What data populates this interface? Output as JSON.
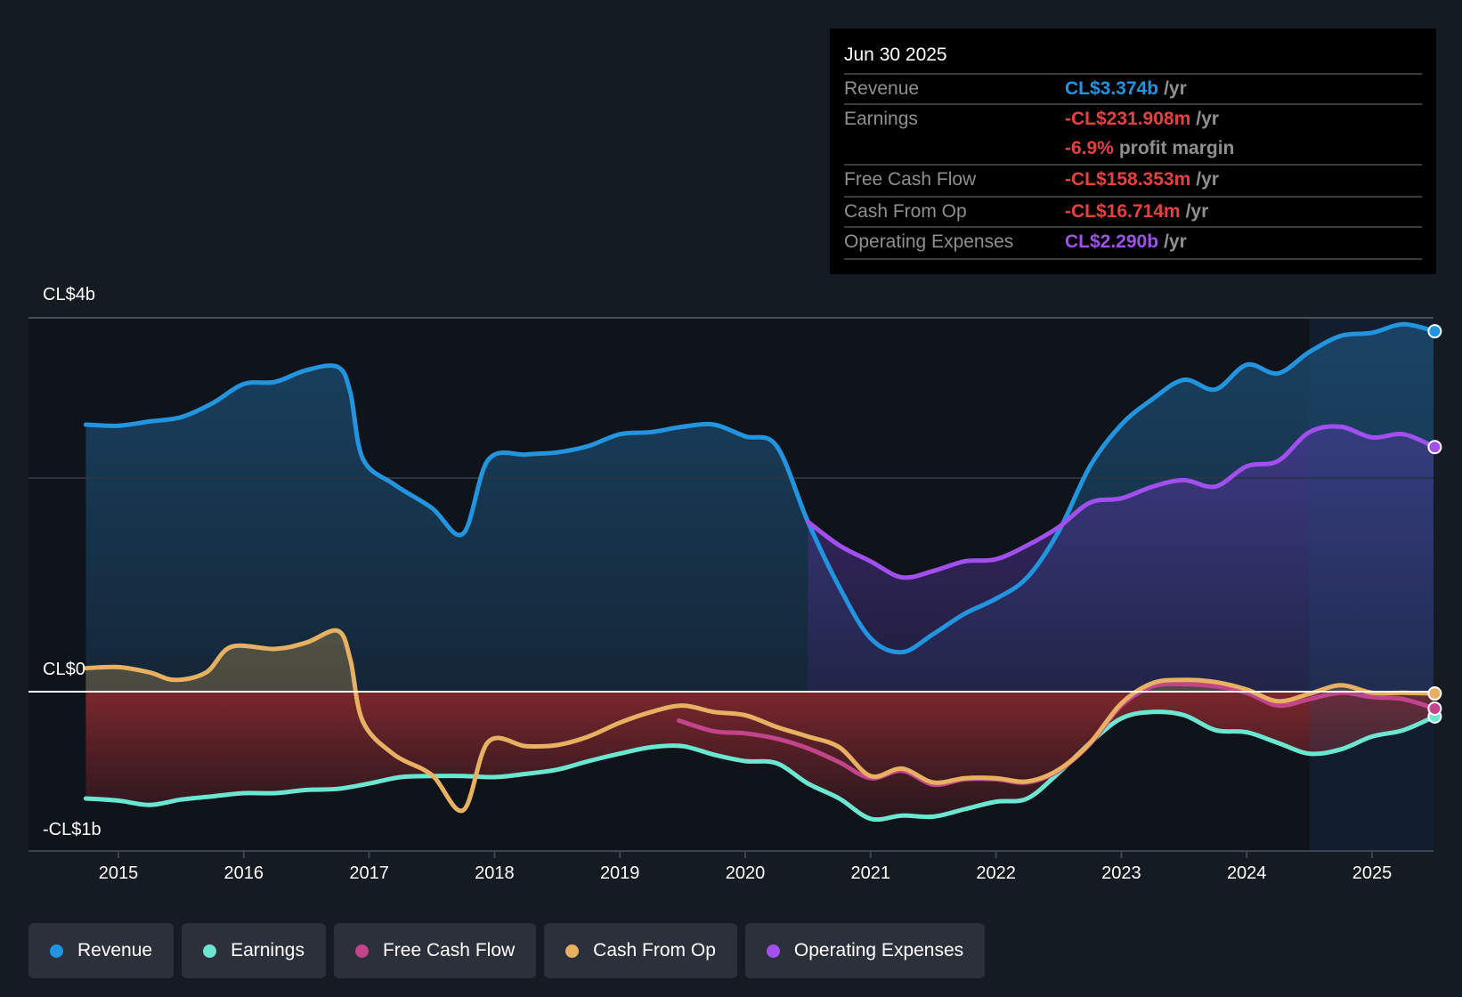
{
  "tooltip": {
    "date": "Jun 30 2025",
    "rows": [
      {
        "label": "Revenue",
        "value": "CL$3.374b",
        "unit": "/yr",
        "color": "#2394df"
      },
      {
        "label": "Earnings",
        "value": "-CL$231.908m",
        "unit": "/yr",
        "color": "#e64141",
        "extra_value": "-6.9%",
        "extra_text": "profit margin"
      },
      {
        "label": "Free Cash Flow",
        "value": "-CL$158.353m",
        "unit": "/yr",
        "color": "#e64141"
      },
      {
        "label": "Cash From Op",
        "value": "-CL$16.714m",
        "unit": "/yr",
        "color": "#e64141"
      },
      {
        "label": "Operating Expenses",
        "value": "CL$2.290b",
        "unit": "/yr",
        "color": "#a24ff0"
      }
    ]
  },
  "legend": [
    {
      "label": "Revenue",
      "color": "#2394df",
      "icon": "dot-icon"
    },
    {
      "label": "Earnings",
      "color": "#6be6d1",
      "icon": "dot-icon"
    },
    {
      "label": "Free Cash Flow",
      "color": "#c2448a",
      "icon": "dot-icon"
    },
    {
      "label": "Cash From Op",
      "color": "#e8b162",
      "icon": "dot-icon"
    },
    {
      "label": "Operating Expenses",
      "color": "#a24ff0",
      "icon": "dot-icon"
    }
  ],
  "chart_data": {
    "type": "area",
    "title": "",
    "xlabel": "",
    "ylabel": "",
    "units": "CL$ billions",
    "y_tick_labels": [
      {
        "value": 3.5,
        "label": "CL$4b"
      },
      {
        "value": 0,
        "label": "CL$0"
      },
      {
        "value": -1.49,
        "label": "-CL$1b"
      }
    ],
    "gridlines": [
      3.5,
      2.0,
      0
    ],
    "ylim": [
      -1.49,
      3.5
    ],
    "xlim": [
      2014.73,
      2025.5
    ],
    "x_ticks": [
      2015,
      2016,
      2017,
      2018,
      2019,
      2020,
      2021,
      2022,
      2023,
      2024,
      2025
    ],
    "highlight_range": [
      2024.5,
      2025.5
    ],
    "series": [
      {
        "name": "Revenue",
        "color": "#2394df",
        "x": [
          2014.74,
          2015.0,
          2015.25,
          2015.5,
          2015.75,
          2016.0,
          2016.25,
          2016.5,
          2016.75,
          2016.85,
          2016.95,
          2017.2,
          2017.5,
          2017.75,
          2017.95,
          2018.25,
          2018.5,
          2018.75,
          2019.0,
          2019.25,
          2019.5,
          2019.75,
          2020.0,
          2020.25,
          2020.5,
          2020.75,
          2021.0,
          2021.25,
          2021.5,
          2021.75,
          2022.0,
          2022.25,
          2022.5,
          2022.75,
          2023.0,
          2023.25,
          2023.5,
          2023.75,
          2024.0,
          2024.25,
          2024.5,
          2024.75,
          2025.0,
          2025.25,
          2025.5
        ],
        "values": [
          2.5,
          2.49,
          2.53,
          2.57,
          2.7,
          2.88,
          2.9,
          3.01,
          3.04,
          2.8,
          2.18,
          1.94,
          1.72,
          1.48,
          2.17,
          2.22,
          2.24,
          2.3,
          2.41,
          2.43,
          2.48,
          2.5,
          2.39,
          2.3,
          1.59,
          0.98,
          0.5,
          0.37,
          0.54,
          0.73,
          0.87,
          1.07,
          1.5,
          2.11,
          2.5,
          2.74,
          2.92,
          2.83,
          3.06,
          2.98,
          3.18,
          3.33,
          3.36,
          3.44,
          3.374
        ]
      },
      {
        "name": "Earnings",
        "color": "#6be6d1",
        "x": [
          2014.74,
          2015.0,
          2015.25,
          2015.5,
          2015.75,
          2016.0,
          2016.25,
          2016.5,
          2016.75,
          2017.0,
          2017.25,
          2017.5,
          2017.75,
          2018.0,
          2018.25,
          2018.5,
          2018.75,
          2019.0,
          2019.25,
          2019.5,
          2019.75,
          2020.0,
          2020.25,
          2020.5,
          2020.75,
          2021.0,
          2021.25,
          2021.5,
          2021.75,
          2022.0,
          2022.25,
          2022.5,
          2022.75,
          2023.0,
          2023.25,
          2023.5,
          2023.75,
          2024.0,
          2024.25,
          2024.5,
          2024.75,
          2025.0,
          2025.25,
          2025.5
        ],
        "values": [
          -1.0,
          -1.02,
          -1.06,
          -1.01,
          -0.98,
          -0.95,
          -0.95,
          -0.92,
          -0.91,
          -0.86,
          -0.8,
          -0.79,
          -0.79,
          -0.8,
          -0.77,
          -0.73,
          -0.65,
          -0.58,
          -0.52,
          -0.51,
          -0.59,
          -0.65,
          -0.67,
          -0.86,
          -1.0,
          -1.19,
          -1.16,
          -1.17,
          -1.1,
          -1.03,
          -1.0,
          -0.76,
          -0.48,
          -0.25,
          -0.19,
          -0.22,
          -0.36,
          -0.38,
          -0.48,
          -0.58,
          -0.54,
          -0.42,
          -0.36,
          -0.232
        ]
      },
      {
        "name": "Free Cash Flow",
        "color": "#c2448a",
        "x": [
          2019.47,
          2019.75,
          2020.0,
          2020.25,
          2020.5,
          2020.75,
          2021.0,
          2021.25,
          2021.5,
          2021.75,
          2022.0,
          2022.25,
          2022.5,
          2022.75,
          2023.0,
          2023.25,
          2023.5,
          2023.75,
          2024.0,
          2024.25,
          2024.5,
          2024.75,
          2025.0,
          2025.25,
          2025.5
        ],
        "values": [
          -0.27,
          -0.37,
          -0.39,
          -0.44,
          -0.53,
          -0.66,
          -0.81,
          -0.74,
          -0.87,
          -0.82,
          -0.82,
          -0.85,
          -0.74,
          -0.49,
          -0.13,
          0.05,
          0.07,
          0.05,
          -0.01,
          -0.13,
          -0.07,
          -0.01,
          -0.05,
          -0.07,
          -0.158
        ]
      },
      {
        "name": "Cash From Op",
        "color": "#e8b162",
        "x": [
          2014.74,
          2015.0,
          2015.25,
          2015.45,
          2015.7,
          2015.9,
          2016.25,
          2016.5,
          2016.75,
          2016.85,
          2016.95,
          2017.2,
          2017.5,
          2017.75,
          2017.95,
          2018.25,
          2018.5,
          2018.75,
          2019.0,
          2019.25,
          2019.5,
          2019.75,
          2020.0,
          2020.25,
          2020.5,
          2020.75,
          2021.0,
          2021.25,
          2021.5,
          2021.75,
          2022.0,
          2022.25,
          2022.5,
          2022.75,
          2023.0,
          2023.25,
          2023.5,
          2023.75,
          2024.0,
          2024.25,
          2024.5,
          2024.75,
          2025.0,
          2025.25,
          2025.5
        ],
        "values": [
          0.22,
          0.23,
          0.18,
          0.11,
          0.18,
          0.42,
          0.4,
          0.46,
          0.57,
          0.3,
          -0.28,
          -0.59,
          -0.78,
          -1.11,
          -0.47,
          -0.51,
          -0.5,
          -0.42,
          -0.29,
          -0.19,
          -0.13,
          -0.19,
          -0.22,
          -0.33,
          -0.42,
          -0.52,
          -0.79,
          -0.72,
          -0.85,
          -0.81,
          -0.81,
          -0.84,
          -0.73,
          -0.48,
          -0.11,
          0.08,
          0.11,
          0.09,
          0.02,
          -0.09,
          -0.02,
          0.06,
          -0.01,
          -0.01,
          -0.017
        ]
      },
      {
        "name": "Operating Expenses",
        "color": "#a24ff0",
        "x": [
          2020.5,
          2020.75,
          2021.0,
          2021.25,
          2021.5,
          2021.75,
          2022.0,
          2022.25,
          2022.5,
          2022.75,
          2023.0,
          2023.25,
          2023.5,
          2023.75,
          2024.0,
          2024.25,
          2024.5,
          2024.75,
          2025.0,
          2025.25,
          2025.5
        ],
        "values": [
          1.59,
          1.37,
          1.22,
          1.07,
          1.13,
          1.22,
          1.24,
          1.37,
          1.54,
          1.77,
          1.81,
          1.92,
          1.98,
          1.92,
          2.11,
          2.16,
          2.43,
          2.48,
          2.38,
          2.41,
          2.29
        ]
      }
    ]
  }
}
